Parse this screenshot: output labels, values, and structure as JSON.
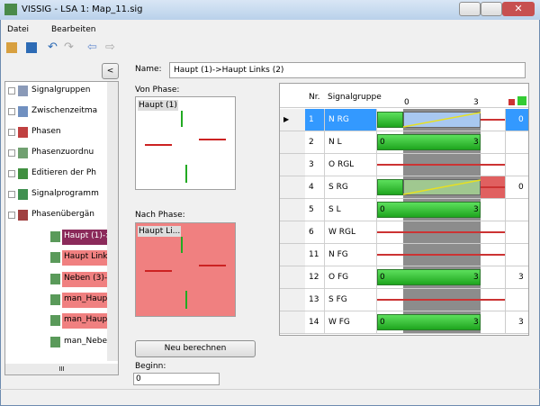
{
  "window": {
    "title": "VISSIG - LSA 1: Map_11.sig"
  },
  "menu": [
    "Datei",
    "Bearbeiten"
  ],
  "collapse_button": "<",
  "tree": {
    "items": [
      "Signalgruppen",
      "Zwischenzeitma",
      "Phasen",
      "Phasenzuordnu",
      "Editieren der Ph",
      "Signalprogramm",
      "Phasenübergän"
    ],
    "children": [
      "Haupt (1)->",
      "Haupt Links",
      "Neben (3)->",
      "man_Haupt",
      "man_Haupt",
      "man_Neber"
    ],
    "scroll_label": "III"
  },
  "name": {
    "label": "Name:",
    "value": "Haupt (1)->Haupt Links (2)"
  },
  "from_phase": {
    "label": "Von Phase:",
    "phase": "Haupt (1)"
  },
  "to_phase": {
    "label": "Nach Phase:",
    "phase": "Haupt Li..."
  },
  "recalc_button": "Neu berechnen",
  "begin": {
    "label": "Beginn:",
    "value": "0"
  },
  "grid": {
    "header": {
      "nr": "Nr.",
      "group": "Signalgruppe",
      "scale_start": "0",
      "scale_end": "3"
    },
    "rows": [
      {
        "nr": "1",
        "group": "N RG",
        "bar": "transition",
        "extra": "0"
      },
      {
        "nr": "2",
        "group": "N L",
        "bar": "green",
        "labels": [
          "0",
          "3"
        ]
      },
      {
        "nr": "3",
        "group": "O RGL",
        "bar": "red"
      },
      {
        "nr": "4",
        "group": "S RG",
        "bar": "transition",
        "extra": "0"
      },
      {
        "nr": "5",
        "group": "S L",
        "bar": "green",
        "labels": [
          "0",
          "3"
        ]
      },
      {
        "nr": "6",
        "group": "W RGL",
        "bar": "red"
      },
      {
        "nr": "11",
        "group": "N FG",
        "bar": "red"
      },
      {
        "nr": "12",
        "group": "O FG",
        "bar": "green",
        "labels": [
          "0",
          "3"
        ],
        "extra": "3"
      },
      {
        "nr": "13",
        "group": "S FG",
        "bar": "red"
      },
      {
        "nr": "14",
        "group": "W FG",
        "bar": "green",
        "labels": [
          "0",
          "3"
        ],
        "extra": "3"
      }
    ]
  }
}
